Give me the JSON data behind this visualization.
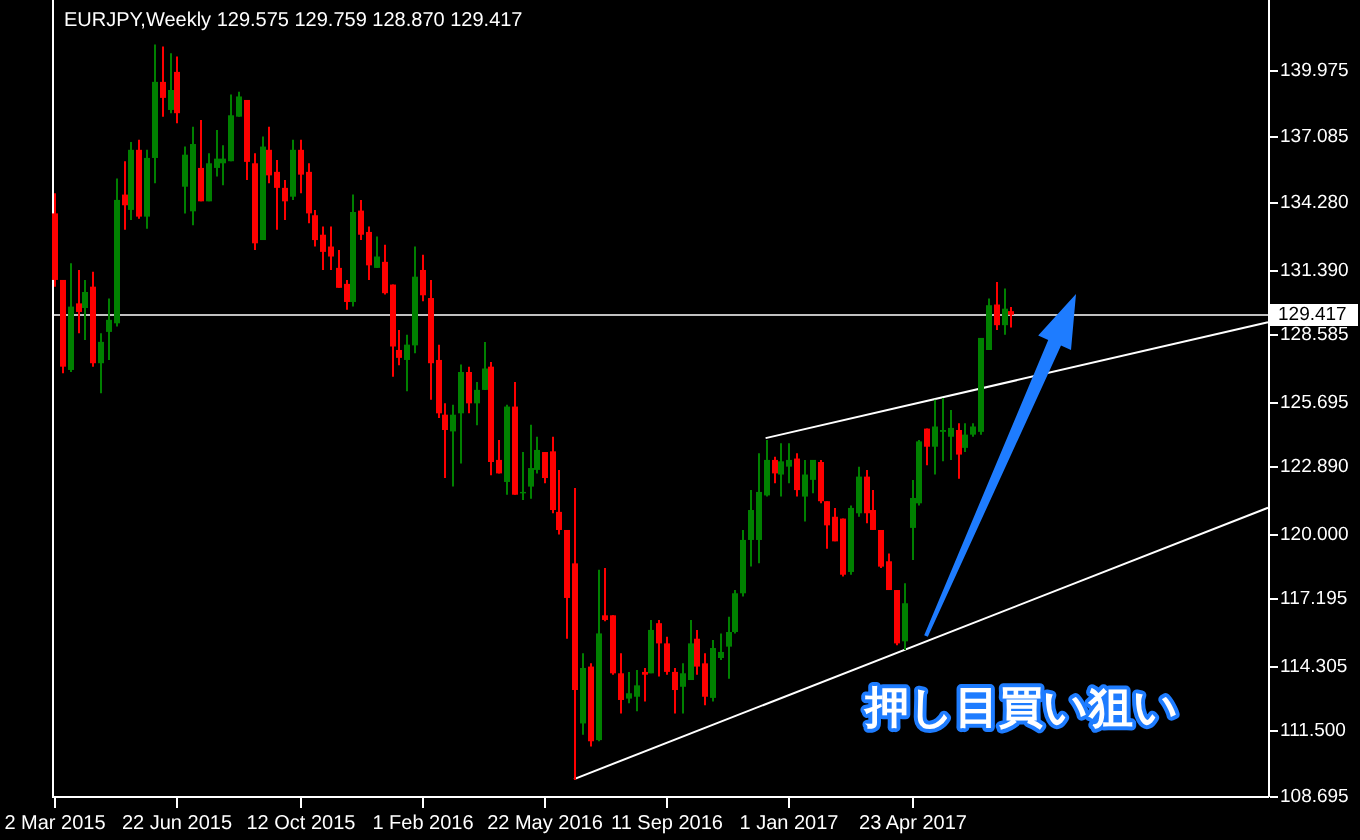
{
  "chart_data": {
    "type": "candlestick",
    "title": "EURJPY,Weekly 129.575 129.759 128.870 129.417",
    "x": [
      "2015-03-02",
      "2015-03-09",
      "2015-03-16",
      "2015-03-23",
      "2015-03-30",
      "2015-04-06",
      "2015-04-13",
      "2015-04-20",
      "2015-04-27",
      "2015-05-04",
      "2015-05-11",
      "2015-05-18",
      "2015-05-25",
      "2015-06-01",
      "2015-06-08",
      "2015-06-15",
      "2015-06-22",
      "2015-06-29",
      "2015-07-06",
      "2015-07-13",
      "2015-07-20",
      "2015-07-27",
      "2015-08-03",
      "2015-08-10",
      "2015-08-17",
      "2015-08-24",
      "2015-08-31",
      "2015-09-07",
      "2015-09-14",
      "2015-09-21",
      "2015-09-28",
      "2015-10-05",
      "2015-10-12",
      "2015-10-19",
      "2015-10-26",
      "2015-11-02",
      "2015-11-09",
      "2015-11-16",
      "2015-11-23",
      "2015-11-30",
      "2015-12-07",
      "2015-12-14",
      "2015-12-21",
      "2015-12-28",
      "2016-01-04",
      "2016-01-11",
      "2016-01-18",
      "2016-01-25",
      "2016-02-01",
      "2016-02-08",
      "2016-02-15",
      "2016-02-22",
      "2016-02-29",
      "2016-03-07",
      "2016-03-14",
      "2016-03-21",
      "2016-03-28",
      "2016-04-04",
      "2016-04-11",
      "2016-04-18",
      "2016-04-25",
      "2016-05-02",
      "2016-05-09",
      "2016-05-16",
      "2016-05-22",
      "2016-05-29",
      "2016-06-05",
      "2016-06-12",
      "2016-06-19",
      "2016-06-26",
      "2016-07-03",
      "2016-07-10",
      "2016-07-17",
      "2016-07-24",
      "2016-07-31",
      "2016-08-07",
      "2016-08-14",
      "2016-08-21",
      "2016-08-28",
      "2016-09-04",
      "2016-09-11",
      "2016-09-18",
      "2016-09-25",
      "2016-10-02",
      "2016-10-09",
      "2016-10-16",
      "2016-10-23",
      "2016-10-30",
      "2016-11-06",
      "2016-11-13",
      "2016-11-20",
      "2016-11-27",
      "2016-12-04",
      "2016-12-11",
      "2016-12-18",
      "2016-12-25",
      "2017-01-01",
      "2017-01-08",
      "2017-01-15",
      "2017-01-22",
      "2017-01-29",
      "2017-02-05",
      "2017-02-12",
      "2017-02-19",
      "2017-02-26",
      "2017-03-05",
      "2017-03-12",
      "2017-03-19",
      "2017-03-26",
      "2017-04-02",
      "2017-04-09",
      "2017-04-16",
      "2017-04-23",
      "2017-04-30",
      "2017-05-07",
      "2017-05-14",
      "2017-05-21",
      "2017-05-28",
      "2017-06-04",
      "2017-06-11",
      "2017-06-18",
      "2017-06-25",
      "2017-07-02",
      "2017-07-09",
      "2017-07-16",
      "2017-07-23"
    ],
    "ohlc": [
      [
        133.79,
        134.66,
        130.63,
        130.92
      ],
      [
        130.92,
        130.92,
        126.9,
        127.18
      ],
      [
        127.04,
        131.64,
        126.95,
        129.77
      ],
      [
        129.91,
        131.35,
        128.62,
        129.54
      ],
      [
        129.71,
        130.92,
        128.33,
        130.4
      ],
      [
        130.63,
        131.27,
        127.18,
        127.33
      ],
      [
        127.33,
        128.62,
        126.03,
        128.25
      ],
      [
        128.68,
        130.12,
        127.47,
        129.2
      ],
      [
        129.05,
        135.29,
        128.91,
        134.37
      ],
      [
        134.6,
        136.04,
        133.08,
        134.14
      ],
      [
        133.94,
        136.87,
        133.51,
        136.53
      ],
      [
        136.53,
        136.96,
        133.56,
        133.65
      ],
      [
        133.65,
        136.53,
        133.13,
        136.18
      ],
      [
        136.18,
        141.07,
        135.09,
        139.46
      ],
      [
        139.46,
        140.98,
        137.96,
        138.77
      ],
      [
        138.25,
        140.69,
        138.11,
        139.11
      ],
      [
        139.89,
        140.55,
        137.68,
        138.11
      ],
      [
        134.94,
        136.67,
        133.79,
        136.32
      ],
      [
        133.88,
        137.53,
        133.28,
        136.78
      ],
      [
        135.75,
        137.82,
        134.31,
        134.31
      ],
      [
        134.31,
        136.38,
        134.31,
        135.95
      ],
      [
        135.75,
        137.39,
        135.38,
        136.15
      ],
      [
        135.95,
        136.73,
        135.0,
        136.15
      ],
      [
        136.04,
        138.91,
        136.04,
        138.02
      ],
      [
        137.96,
        139.03,
        137.96,
        138.83
      ],
      [
        138.68,
        138.68,
        135.23,
        136.01
      ],
      [
        135.95,
        136.38,
        132.21,
        132.5
      ],
      [
        132.64,
        137.1,
        132.64,
        136.67
      ],
      [
        136.53,
        137.53,
        135.09,
        135.43
      ],
      [
        135.58,
        136.09,
        133.08,
        134.89
      ],
      [
        134.89,
        135.23,
        133.51,
        134.31
      ],
      [
        134.51,
        136.96,
        134.37,
        136.53
      ],
      [
        136.53,
        136.96,
        134.66,
        135.46
      ],
      [
        135.58,
        135.95,
        133.36,
        133.79
      ],
      [
        133.71,
        133.94,
        132.36,
        132.64
      ],
      [
        132.87,
        133.22,
        131.35,
        132.13
      ],
      [
        132.36,
        133.22,
        131.35,
        131.93
      ],
      [
        131.44,
        132.21,
        130.58,
        130.58
      ],
      [
        130.75,
        130.92,
        129.63,
        129.97
      ],
      [
        129.97,
        134.6,
        129.77,
        133.85
      ],
      [
        133.91,
        134.37,
        132.64,
        132.87
      ],
      [
        132.99,
        133.22,
        130.92,
        131.55
      ],
      [
        131.44,
        132.79,
        131.44,
        131.93
      ],
      [
        131.7,
        132.44,
        130.29,
        130.35
      ],
      [
        130.72,
        130.72,
        126.75,
        128.05
      ],
      [
        127.9,
        128.76,
        127.24,
        127.56
      ],
      [
        127.47,
        128.56,
        126.12,
        128.13
      ],
      [
        128.1,
        132.36,
        127.76,
        131.06
      ],
      [
        131.35,
        132.01,
        130.0,
        130.26
      ],
      [
        130.14,
        130.92,
        125.75,
        127.33
      ],
      [
        127.47,
        128.13,
        124.97,
        125.17
      ],
      [
        125.11,
        125.6,
        122.38,
        124.45
      ],
      [
        124.39,
        125.54,
        122.01,
        125.11
      ],
      [
        125.17,
        127.27,
        123.01,
        126.95
      ],
      [
        126.95,
        127.18,
        125.17,
        125.6
      ],
      [
        125.6,
        126.52,
        124.65,
        126.18
      ],
      [
        126.18,
        128.25,
        126.18,
        127.1
      ],
      [
        127.18,
        127.38,
        122.5,
        123.07
      ],
      [
        123.16,
        124.02,
        122.58,
        122.58
      ],
      [
        122.21,
        125.54,
        121.66,
        125.46
      ],
      [
        125.46,
        126.52,
        121.66,
        121.66
      ],
      [
        121.72,
        123.5,
        121.43,
        121.78
      ],
      [
        122.01,
        124.68,
        121.49,
        122.81
      ],
      [
        122.73,
        124.16,
        122.58,
        123.59
      ],
      [
        123.5,
        123.5,
        122.15,
        122.38
      ],
      [
        123.53,
        124.16,
        120.86,
        121.0
      ],
      [
        120.92,
        122.73,
        119.94,
        120.14
      ],
      [
        120.14,
        120.14,
        115.45,
        117.21
      ],
      [
        118.7,
        121.95,
        109.36,
        113.24
      ],
      [
        111.8,
        114.82,
        111.31,
        114.19
      ],
      [
        114.25,
        114.39,
        110.8,
        111.03
      ],
      [
        111.08,
        118.42,
        111.03,
        115.68
      ],
      [
        116.46,
        118.5,
        116.2,
        116.26
      ],
      [
        116.46,
        116.46,
        113.9,
        113.96
      ],
      [
        113.96,
        114.82,
        112.23,
        112.81
      ],
      [
        112.87,
        114.02,
        112.67,
        113.1
      ],
      [
        112.95,
        114.1,
        112.32,
        113.44
      ],
      [
        114.02,
        114.19,
        112.75,
        113.9
      ],
      [
        113.96,
        116.26,
        113.96,
        115.83
      ],
      [
        116.12,
        116.26,
        113.82,
        115.25
      ],
      [
        115.25,
        115.54,
        113.9,
        114.02
      ],
      [
        114.02,
        114.19,
        112.23,
        113.24
      ],
      [
        113.38,
        114.39,
        112.23,
        113.96
      ],
      [
        113.67,
        116.26,
        113.67,
        115.25
      ],
      [
        115.45,
        115.83,
        113.9,
        114.25
      ],
      [
        114.39,
        114.82,
        112.58,
        112.95
      ],
      [
        112.9,
        115.4,
        112.75,
        115.05
      ],
      [
        114.62,
        115.68,
        114.53,
        114.88
      ],
      [
        115.11,
        116.4,
        113.73,
        115.74
      ],
      [
        115.74,
        117.55,
        115.68,
        117.41
      ],
      [
        117.41,
        120.14,
        117.27,
        119.71
      ],
      [
        119.71,
        121.86,
        118.56,
        121.0
      ],
      [
        119.71,
        123.45,
        118.7,
        121.78
      ],
      [
        121.63,
        124.02,
        121.58,
        123.16
      ],
      [
        123.16,
        123.3,
        122.15,
        122.58
      ],
      [
        122.53,
        123.88,
        121.58,
        123.1
      ],
      [
        122.87,
        123.88,
        122.15,
        123.16
      ],
      [
        123.22,
        123.45,
        121.58,
        121.86
      ],
      [
        121.58,
        123.16,
        120.51,
        122.53
      ],
      [
        122.3,
        123.16,
        121.72,
        123.16
      ],
      [
        123.07,
        123.16,
        121.29,
        121.38
      ],
      [
        121.38,
        121.38,
        119.33,
        120.34
      ],
      [
        120.71,
        121.09,
        119.65,
        119.65
      ],
      [
        120.63,
        120.63,
        118.13,
        118.21
      ],
      [
        118.33,
        121.2,
        118.21,
        121.09
      ],
      [
        120.86,
        122.87,
        120.71,
        122.44
      ],
      [
        122.44,
        122.73,
        120.43,
        120.86
      ],
      [
        121.0,
        121.86,
        120.14,
        120.14
      ],
      [
        120.14,
        120.14,
        118.5,
        118.56
      ],
      [
        118.79,
        119.13,
        117.55,
        117.55
      ],
      [
        117.55,
        117.55,
        115.17,
        115.25
      ],
      [
        115.34,
        117.84,
        114.97,
        116.98
      ],
      [
        120.23,
        122.3,
        118.85,
        121.52
      ],
      [
        121.29,
        124.02,
        121.2,
        123.96
      ],
      [
        124.51,
        124.51,
        122.93,
        123.73
      ],
      [
        123.73,
        125.75,
        122.53,
        124.6
      ],
      [
        124.37,
        125.83,
        123.1,
        124.45
      ],
      [
        124.16,
        125.31,
        123.16,
        124.54
      ],
      [
        124.45,
        124.74,
        122.35,
        123.39
      ],
      [
        123.68,
        124.74,
        123.5,
        124.25
      ],
      [
        124.25,
        124.74,
        124.16,
        124.6
      ],
      [
        124.37,
        128.42,
        124.25,
        128.42
      ],
      [
        127.9,
        130.12,
        127.9,
        129.83
      ],
      [
        129.86,
        130.83,
        128.76,
        128.97
      ],
      [
        128.97,
        130.55,
        128.56,
        129.68
      ],
      [
        129.575,
        129.759,
        128.87,
        129.417
      ]
    ],
    "colors": [
      "#ff0000",
      "#ff0000",
      "#008000",
      "#ff0000",
      "#008000",
      "#ff0000",
      "#008000",
      "#008000",
      "#008000",
      "#ff0000",
      "#008000",
      "#ff0000",
      "#008000",
      "#008000",
      "#ff0000",
      "#008000",
      "#ff0000",
      "#008000",
      "#008000",
      "#ff0000",
      "#008000",
      "#008000",
      "#008000",
      "#008000",
      "#008000",
      "#ff0000",
      "#ff0000",
      "#008000",
      "#ff0000",
      "#ff0000",
      "#ff0000",
      "#008000",
      "#ff0000",
      "#ff0000",
      "#ff0000",
      "#ff0000",
      "#ff0000",
      "#ff0000",
      "#ff0000",
      "#008000",
      "#ff0000",
      "#ff0000",
      "#008000",
      "#ff0000",
      "#ff0000",
      "#ff0000",
      "#008000",
      "#008000",
      "#ff0000",
      "#ff0000",
      "#ff0000",
      "#ff0000",
      "#008000",
      "#008000",
      "#ff0000",
      "#008000",
      "#008000",
      "#ff0000",
      "#ff0000",
      "#008000",
      "#ff0000",
      "#008000",
      "#008000",
      "#008000",
      "#ff0000",
      "#ff0000",
      "#ff0000",
      "#ff0000",
      "#ff0000",
      "#008000",
      "#ff0000",
      "#008000",
      "#ff0000",
      "#ff0000",
      "#ff0000",
      "#008000",
      "#008000",
      "#ff0000",
      "#008000",
      "#ff0000",
      "#ff0000",
      "#ff0000",
      "#008000",
      "#008000",
      "#ff0000",
      "#ff0000",
      "#008000",
      "#008000",
      "#008000",
      "#008000",
      "#008000",
      "#008000",
      "#008000",
      "#008000",
      "#ff0000",
      "#008000",
      "#008000",
      "#ff0000",
      "#008000",
      "#008000",
      "#ff0000",
      "#ff0000",
      "#ff0000",
      "#ff0000",
      "#008000",
      "#008000",
      "#ff0000",
      "#ff0000",
      "#ff0000",
      "#ff0000",
      "#ff0000",
      "#008000",
      "#008000",
      "#008000",
      "#ff0000",
      "#008000",
      "#008000",
      "#008000",
      "#ff0000",
      "#008000",
      "#008000",
      "#008000",
      "#008000",
      "#ff0000",
      "#008000",
      "#ff0000"
    ],
    "series": [
      {
        "type": "line",
        "color": "#ffffff",
        "x": [
          "2016-12-11",
          "2018-03-15"
        ],
        "values": [
          124.1,
          129.1
        ]
      },
      {
        "type": "line",
        "color": "#ffffff",
        "x": [
          "2016-06-19",
          "2018-03-15"
        ],
        "values": [
          109.4,
          121.1
        ]
      }
    ],
    "xlim": [
      "2015-02-28",
      "2018-03-15"
    ],
    "ylim": [
      108.67,
      142.99
    ],
    "xticks": [
      {
        "value": "2015-03-02",
        "label": "2 Mar 2015"
      },
      {
        "value": "2015-06-22",
        "label": "22 Jun 2015"
      },
      {
        "value": "2015-10-12",
        "label": "12 Oct 2015"
      },
      {
        "value": "2016-02-01",
        "label": "1 Feb 2016"
      },
      {
        "value": "2016-05-22",
        "label": "22 May 2016"
      },
      {
        "value": "2016-09-11",
        "label": "11 Sep 2016"
      },
      {
        "value": "2017-01-01",
        "label": "1 Jan 2017"
      },
      {
        "value": "2017-04-23",
        "label": "23 Apr 2017"
      }
    ],
    "yticks": [
      139.975,
      137.085,
      {
        "value": 134.28,
        "label": "134.280"
      },
      {
        "value": 131.39,
        "label": "131.390"
      },
      128.585,
      125.695,
      {
        "value": 122.89,
        "label": "122.890"
      },
      {
        "value": 120,
        "label": "120.000"
      },
      117.195,
      114.305,
      {
        "value": 111.5,
        "label": "111.500"
      },
      108.695
    ],
    "ref_lines": [
      {
        "axis": "y",
        "value": 129.417,
        "label": "129.417",
        "color": "#c0c0c0"
      }
    ],
    "annotations": [
      "押し目買い狙い"
    ]
  }
}
